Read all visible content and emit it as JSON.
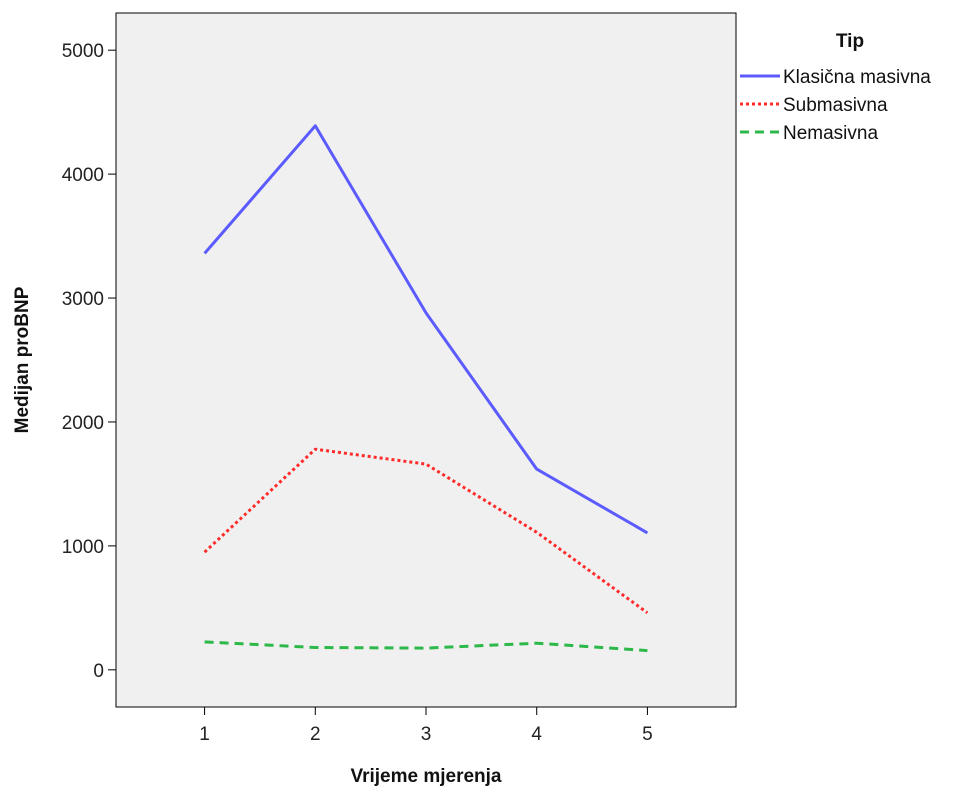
{
  "chart_data": {
    "type": "line",
    "xlabel": "Vrijeme mjerenja",
    "ylabel": "Medijan proBNP",
    "x": [
      1,
      2,
      3,
      4,
      5
    ],
    "xlim": [
      0.2,
      5.8
    ],
    "ylim": [
      -300,
      5300
    ],
    "yticks": [
      0,
      1000,
      2000,
      3000,
      4000,
      5000
    ],
    "grid": false,
    "plot_background": "#f0f0f0",
    "legend": {
      "title": "Tip",
      "placement": "outside-right-top"
    },
    "series": [
      {
        "name": "Klasična masivna",
        "values": [
          3360,
          4390,
          2880,
          1620,
          1105
        ],
        "color": "#5b5bff",
        "dash": "solid"
      },
      {
        "name": "Submasivna",
        "values": [
          950,
          1780,
          1660,
          1110,
          460
        ],
        "color": "#ff2a2a",
        "dash": "dotted"
      },
      {
        "name": "Nemasivna",
        "values": [
          225,
          180,
          175,
          215,
          155
        ],
        "color": "#2db84a",
        "dash": "dashed"
      }
    ]
  }
}
